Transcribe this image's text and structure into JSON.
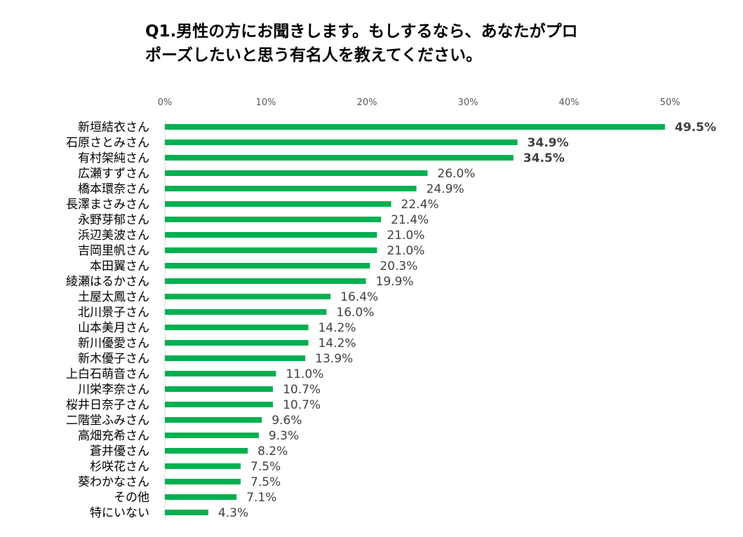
{
  "chart_data": {
    "type": "bar",
    "orientation": "horizontal",
    "title_lines": [
      "Q1.男性の方にお聞きします。もしするなら、あなたがプロ",
      "ポーズしたいと思う有名人を教えてください。"
    ],
    "x_ticks": [
      "0%",
      "10%",
      "20%",
      "30%",
      "40%",
      "50%"
    ],
    "xlim": [
      0,
      50
    ],
    "grid": false,
    "legend": "none",
    "bar_color": "#00b050",
    "categories": [
      "新垣結衣さん",
      "石原さとみさん",
      "有村架純さん",
      "広瀬すずさん",
      "橋本環奈さん",
      "長澤まさみさん",
      "永野芽郁さん",
      "浜辺美波さん",
      "吉岡里帆さん",
      "本田翼さん",
      "綾瀬はるかさん",
      "土屋太鳳さん",
      "北川景子さん",
      "山本美月さん",
      "新川優愛さん",
      "新木優子さん",
      "上白石萌音さん",
      "川栄李奈さん",
      "桜井日奈子さん",
      "二階堂ふみさん",
      "高畑充希さん",
      "蒼井優さん",
      "杉咲花さん",
      "葵わかなさん",
      "その他",
      "特にいない"
    ],
    "values": [
      49.5,
      34.9,
      34.5,
      26.0,
      24.9,
      22.4,
      21.4,
      21.0,
      21.0,
      20.3,
      19.9,
      16.4,
      16.0,
      14.2,
      14.2,
      13.9,
      11.0,
      10.7,
      10.7,
      9.6,
      9.3,
      8.2,
      7.5,
      7.5,
      7.1,
      4.3
    ],
    "value_labels": [
      "49.5%",
      "34.9%",
      "34.5%",
      "26.0%",
      "24.9%",
      "22.4%",
      "21.4%",
      "21.0%",
      "21.0%",
      "20.3%",
      "19.9%",
      "16.4%",
      "16.0%",
      "14.2%",
      "14.2%",
      "13.9%",
      "11.0%",
      "10.7%",
      "10.7%",
      "9.6%",
      "9.3%",
      "8.2%",
      "7.5%",
      "7.5%",
      "7.1%",
      "4.3%"
    ],
    "bold_labels_top_n": 3
  }
}
